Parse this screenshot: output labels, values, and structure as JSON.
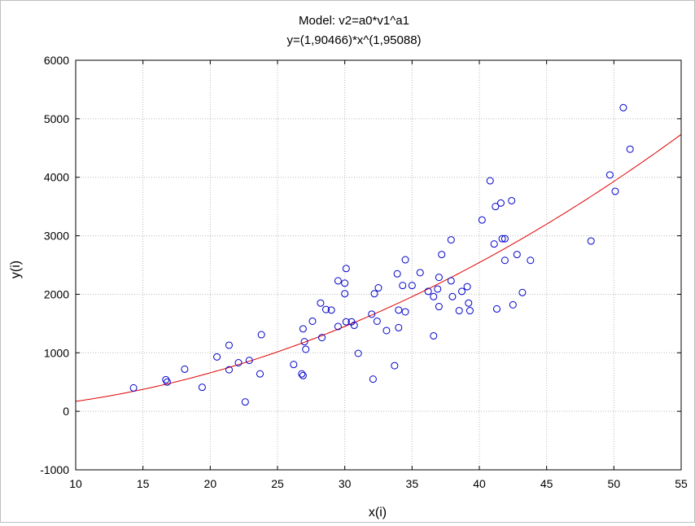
{
  "chart_data": {
    "type": "scatter",
    "title": "Model: v2=a0*v1^a1",
    "subtitle": "y=(1,90466)*x^(1,95088)",
    "xlabel": "x(i)",
    "ylabel": "y(i)",
    "xlim": [
      10,
      55
    ],
    "ylim": [
      -1000,
      6000
    ],
    "xticks": [
      10,
      15,
      20,
      25,
      30,
      35,
      40,
      45,
      50,
      55
    ],
    "yticks": [
      -1000,
      0,
      1000,
      2000,
      3000,
      4000,
      5000,
      6000
    ],
    "grid": true,
    "legend": "none",
    "colors": {
      "points": "#0000cc",
      "fit": "#e00000",
      "grid": "#b8b8b8"
    },
    "fit": {
      "a0": 1.90466,
      "a1": 1.95088
    },
    "points": [
      [
        14.3,
        400
      ],
      [
        16.7,
        540
      ],
      [
        16.8,
        500
      ],
      [
        18.1,
        720
      ],
      [
        19.4,
        410
      ],
      [
        20.5,
        930
      ],
      [
        21.4,
        710
      ],
      [
        21.4,
        1130
      ],
      [
        22.1,
        830
      ],
      [
        22.6,
        160
      ],
      [
        22.9,
        870
      ],
      [
        23.7,
        640
      ],
      [
        23.8,
        1310
      ],
      [
        26.2,
        800
      ],
      [
        26.8,
        640
      ],
      [
        26.9,
        610
      ],
      [
        26.9,
        1410
      ],
      [
        27.0,
        1190
      ],
      [
        27.1,
        1060
      ],
      [
        27.6,
        1540
      ],
      [
        28.2,
        1850
      ],
      [
        28.3,
        1260
      ],
      [
        28.6,
        1740
      ],
      [
        29.0,
        1730
      ],
      [
        29.5,
        2230
      ],
      [
        29.5,
        1450
      ],
      [
        30.0,
        2010
      ],
      [
        30.0,
        2190
      ],
      [
        30.1,
        2440
      ],
      [
        30.1,
        1530
      ],
      [
        30.5,
        1530
      ],
      [
        30.7,
        1470
      ],
      [
        31.0,
        990
      ],
      [
        32.0,
        1660
      ],
      [
        32.1,
        550
      ],
      [
        32.2,
        2010
      ],
      [
        32.4,
        1540
      ],
      [
        32.5,
        2110
      ],
      [
        33.1,
        1380
      ],
      [
        33.7,
        780
      ],
      [
        33.9,
        2350
      ],
      [
        34.0,
        1730
      ],
      [
        34.0,
        1430
      ],
      [
        34.3,
        2150
      ],
      [
        34.5,
        2590
      ],
      [
        34.5,
        1700
      ],
      [
        35.0,
        2150
      ],
      [
        35.6,
        2370
      ],
      [
        36.2,
        2050
      ],
      [
        36.6,
        1960
      ],
      [
        36.6,
        1290
      ],
      [
        36.9,
        2090
      ],
      [
        37.0,
        2290
      ],
      [
        37.0,
        1790
      ],
      [
        37.2,
        2680
      ],
      [
        37.9,
        2930
      ],
      [
        37.9,
        2230
      ],
      [
        38.0,
        1960
      ],
      [
        38.5,
        1720
      ],
      [
        38.7,
        2050
      ],
      [
        39.1,
        2130
      ],
      [
        39.2,
        1850
      ],
      [
        39.3,
        1720
      ],
      [
        40.2,
        3270
      ],
      [
        40.8,
        3940
      ],
      [
        41.1,
        2860
      ],
      [
        41.2,
        3500
      ],
      [
        41.3,
        1750
      ],
      [
        41.6,
        3560
      ],
      [
        41.7,
        2950
      ],
      [
        41.9,
        2580
      ],
      [
        41.9,
        2950
      ],
      [
        42.4,
        3600
      ],
      [
        42.5,
        1820
      ],
      [
        42.8,
        2680
      ],
      [
        43.2,
        2030
      ],
      [
        43.8,
        2580
      ],
      [
        48.3,
        2910
      ],
      [
        49.7,
        4040
      ],
      [
        50.1,
        3760
      ],
      [
        50.7,
        5190
      ],
      [
        51.2,
        4480
      ]
    ]
  }
}
